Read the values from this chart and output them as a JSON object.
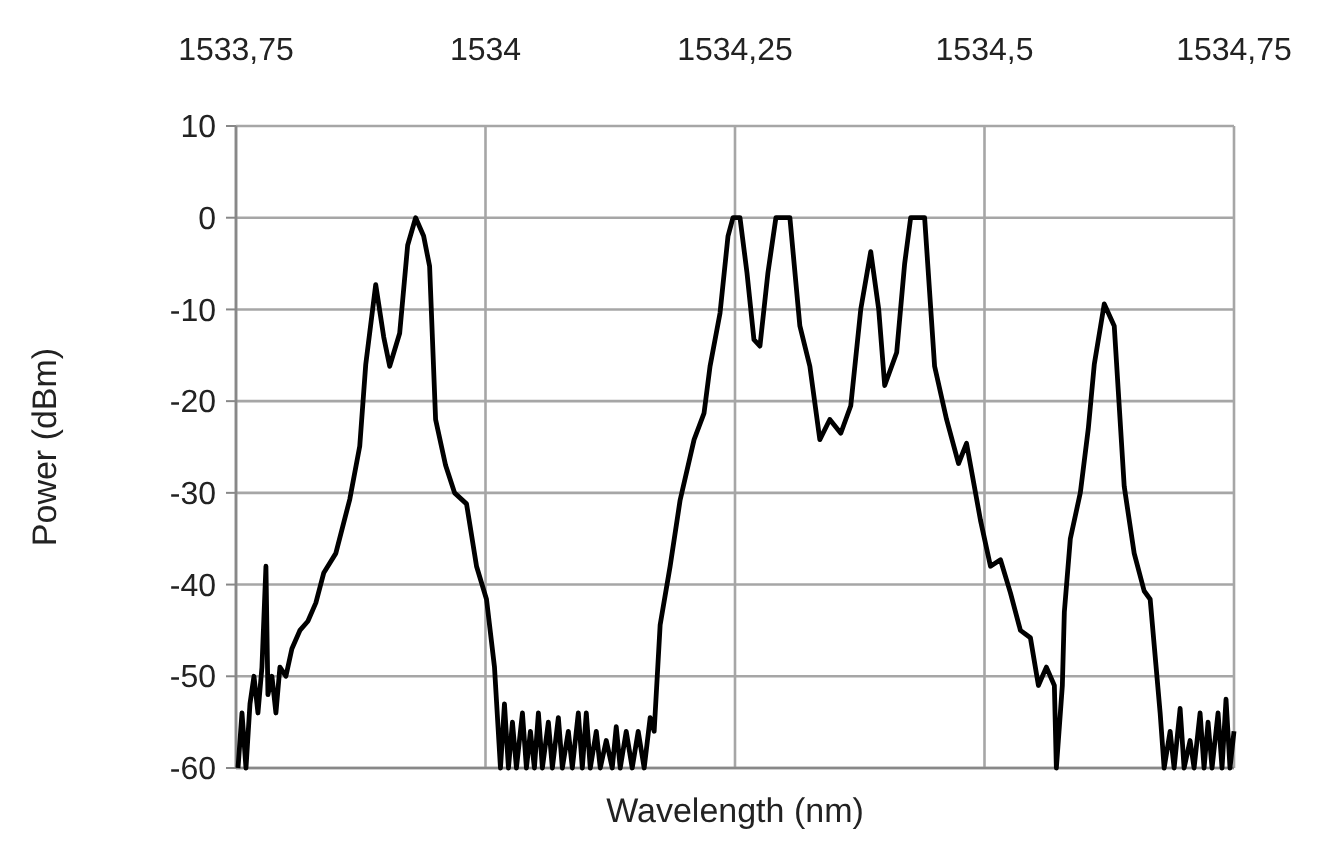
{
  "chart_data": {
    "type": "line",
    "xlabel": "Wavelength (nm)",
    "ylabel": "Power (dBm)",
    "xlim": [
      1533.75,
      1534.75
    ],
    "xticks": [
      {
        "value": 1533.75,
        "label": "1533,75"
      },
      {
        "value": 1534,
        "label": "1534"
      },
      {
        "value": 1534.25,
        "label": "1534,25"
      },
      {
        "value": 1534.5,
        "label": "1534,5"
      },
      {
        "value": 1534.75,
        "label": "1534,75"
      }
    ],
    "ylim": [
      -60,
      10
    ],
    "yticks": [
      -60,
      -50,
      -40,
      -30,
      -20,
      -10,
      0,
      10
    ],
    "grid": true,
    "marker": "none",
    "line_style": "solid",
    "series": [
      {
        "color": "#000000",
        "x": [
          1533.752,
          1533.756,
          1533.76,
          1533.764,
          1533.768,
          1533.772,
          1533.776,
          1533.78,
          1533.782,
          1533.786,
          1533.79,
          1533.794,
          1533.8,
          1533.806,
          1533.814,
          1533.822,
          1533.83,
          1533.838,
          1533.85,
          1533.864,
          1533.874,
          1533.88,
          1533.89,
          1533.898,
          1533.904,
          1533.914,
          1533.922,
          1533.93,
          1533.938,
          1533.944,
          1533.95,
          1533.96,
          1533.969,
          1533.981,
          1533.991,
          1534.001,
          1534.009,
          1534.015,
          1534.019,
          1534.023,
          1534.027,
          1534.031,
          1534.037,
          1534.041,
          1534.045,
          1534.049,
          1534.053,
          1534.057,
          1534.063,
          1534.067,
          1534.073,
          1534.077,
          1534.083,
          1534.087,
          1534.093,
          1534.097,
          1534.101,
          1534.105,
          1534.111,
          1534.115,
          1534.121,
          1534.127,
          1534.131,
          1534.135,
          1534.141,
          1534.147,
          1534.153,
          1534.159,
          1534.165,
          1534.169,
          1534.175,
          1534.185,
          1534.195,
          1534.209,
          1534.219,
          1534.225,
          1534.235,
          1534.243,
          1534.248,
          1534.255,
          1534.262,
          1534.269,
          1534.275,
          1534.283,
          1534.291,
          1534.305,
          1534.315,
          1534.325,
          1534.335,
          1534.345,
          1534.356,
          1534.366,
          1534.376,
          1534.386,
          1534.394,
          1534.4,
          1534.412,
          1534.42,
          1534.426,
          1534.44,
          1534.45,
          1534.462,
          1534.474,
          1534.482,
          1534.496,
          1534.506,
          1534.516,
          1534.526,
          1534.536,
          1534.546,
          1534.554,
          1534.562,
          1534.57,
          1534.572,
          1534.578,
          1534.58,
          1534.586,
          1534.596,
          1534.604,
          1534.61,
          1534.62,
          1534.63,
          1534.64,
          1534.65,
          1534.66,
          1534.666,
          1534.676,
          1534.68,
          1534.686,
          1534.69,
          1534.696,
          1534.7,
          1534.706,
          1534.71,
          1534.716,
          1534.72,
          1534.724,
          1534.728,
          1534.734,
          1534.738,
          1534.742,
          1534.746,
          1534.75
        ],
        "values": [
          -60,
          -54,
          -60,
          -53,
          -50,
          -54,
          -49,
          -38,
          -52,
          -50,
          -54,
          -49,
          -50,
          -47,
          -45,
          -44,
          -42,
          -38.7,
          -36.6,
          -30.7,
          -24.9,
          -16,
          -7.3,
          -13,
          -16.2,
          -12.6,
          -3,
          0,
          -2,
          -5.3,
          -22,
          -27,
          -30,
          -31.2,
          -38,
          -41.6,
          -49,
          -60,
          -53,
          -60,
          -55,
          -60,
          -54,
          -60,
          -56,
          -60,
          -54,
          -60,
          -55,
          -60,
          -54.5,
          -60,
          -56,
          -60,
          -54,
          -60,
          -54,
          -60,
          -56,
          -60,
          -57,
          -60,
          -55.5,
          -60,
          -56,
          -60,
          -56,
          -60,
          -54.5,
          -56,
          -44.4,
          -38,
          -30.8,
          -24.2,
          -21.3,
          -16.2,
          -10.4,
          -2,
          0,
          0,
          -6,
          -13.3,
          -14,
          -6,
          0,
          0,
          -11.8,
          -16.2,
          -24.2,
          -22,
          -23.5,
          -20.5,
          -10,
          -3.7,
          -10,
          -18.3,
          -14.7,
          -5,
          0,
          0,
          -16.2,
          -22,
          -26.8,
          -24.6,
          -33,
          -38,
          -37.3,
          -40.9,
          -45,
          -45.8,
          -51,
          -49,
          -51,
          -60,
          -51,
          -43,
          -35,
          -30,
          -23,
          -16,
          -9.4,
          -11.8,
          -29.3,
          -36.6,
          -40.7,
          -41.6,
          -54,
          -60,
          -56,
          -60,
          -53.5,
          -60,
          -57,
          -60,
          -54,
          -60,
          -55,
          -60,
          -54,
          -60,
          -52.5,
          -60,
          -56
        ]
      }
    ]
  }
}
